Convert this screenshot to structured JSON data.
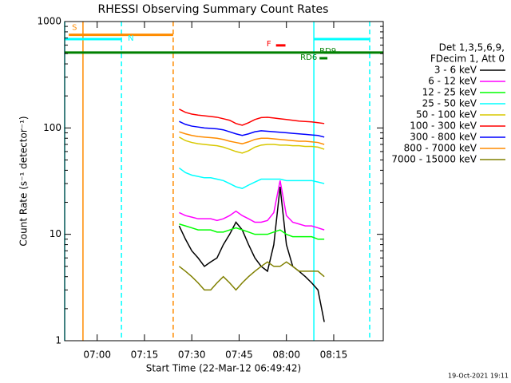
{
  "chart_data": {
    "type": "line",
    "title": "RHESSI Observing Summary Count Rates",
    "xlabel": "Start Time (22-Mar-12 06:49:42)",
    "ylabel": "Count Rate (s⁻¹ detector⁻¹)",
    "legend_header": [
      "Det 1,3,5,6,9,",
      "FDecim 1, Att 0"
    ],
    "footer": "19-Oct-2021 19:11",
    "ylog": true,
    "xlim": [
      409.7,
      510.7
    ],
    "ylim": [
      1,
      1000
    ],
    "yticks": [
      1,
      10,
      100,
      1000
    ],
    "xticks": [
      {
        "value": 420,
        "label": "07:00"
      },
      {
        "value": 435,
        "label": "07:15"
      },
      {
        "value": 450,
        "label": "07:30"
      },
      {
        "value": 465,
        "label": "07:45"
      },
      {
        "value": 480,
        "label": "08:00"
      },
      {
        "value": 495,
        "label": "08:15"
      }
    ],
    "x": [
      446,
      448,
      450,
      452,
      454,
      456,
      458,
      460,
      462,
      464,
      466,
      468,
      470,
      472,
      474,
      476,
      478,
      480,
      482,
      484,
      486,
      488,
      490,
      492
    ],
    "series": [
      {
        "name": "3 - 6 keV",
        "color": "#000000",
        "values": [
          12,
          9,
          7,
          6,
          5,
          5.5,
          6,
          8,
          10,
          13,
          11,
          8,
          6,
          5,
          4.5,
          8,
          28,
          8,
          5,
          4.5,
          4,
          3.5,
          3,
          1.5
        ]
      },
      {
        "name": "6 - 12 keV",
        "color": "#ff00ff",
        "values": [
          16,
          15,
          14.5,
          14,
          14,
          14,
          13.5,
          14,
          15,
          16.5,
          15,
          14,
          13,
          13,
          13.5,
          16,
          32,
          15,
          13,
          12.5,
          12,
          12,
          11.5,
          11
        ]
      },
      {
        "name": "12 - 25 keV",
        "color": "#00ff00",
        "values": [
          12.5,
          12,
          11.5,
          11,
          11,
          11,
          10.5,
          10.5,
          11,
          11.5,
          11,
          10.5,
          10,
          10,
          10,
          10.5,
          11,
          10,
          9.5,
          9.5,
          9.5,
          9.5,
          9,
          9
        ]
      },
      {
        "name": "25 - 50 keV",
        "color": "#00ffff",
        "values": [
          42,
          38,
          36,
          35,
          34,
          34,
          33,
          32,
          30,
          28,
          27,
          29,
          31,
          33,
          33,
          33,
          33,
          32,
          32,
          32,
          32,
          32,
          31,
          30
        ]
      },
      {
        "name": "50 - 100 keV",
        "color": "#d8c800",
        "values": [
          82,
          76,
          73,
          71,
          70,
          69,
          68,
          66,
          63,
          60,
          58,
          61,
          66,
          69,
          70,
          70,
          69,
          69,
          68,
          68,
          67,
          67,
          66,
          63
        ]
      },
      {
        "name": "100 - 300 keV",
        "color": "#ff0000",
        "values": [
          150,
          140,
          135,
          132,
          130,
          128,
          126,
          122,
          118,
          110,
          106,
          112,
          120,
          125,
          126,
          124,
          122,
          120,
          118,
          116,
          115,
          114,
          112,
          110
        ]
      },
      {
        "name": "300 - 800 keV",
        "color": "#0000ff",
        "values": [
          115,
          108,
          104,
          102,
          100,
          99,
          98,
          96,
          92,
          88,
          85,
          88,
          92,
          94,
          93,
          92,
          91,
          90,
          89,
          88,
          87,
          86,
          85,
          82
        ]
      },
      {
        "name": "800 - 7000 keV",
        "color": "#ff8c00",
        "values": [
          92,
          88,
          85,
          83,
          82,
          81,
          80,
          78,
          75,
          73,
          71,
          74,
          78,
          80,
          80,
          79,
          78,
          77,
          76,
          75,
          75,
          74,
          73,
          70
        ]
      },
      {
        "name": "7000 - 15000 keV",
        "color": "#808000",
        "values": [
          5,
          4.5,
          4,
          3.5,
          3,
          3,
          3.5,
          4,
          3.5,
          3,
          3.5,
          4,
          4.5,
          5,
          5.5,
          5,
          5,
          5.5,
          5,
          4.5,
          4.5,
          4.5,
          4.5,
          4
        ]
      }
    ],
    "flags": [
      {
        "label": "S",
        "color": "#ff8c00",
        "start": 411,
        "end": 444.1,
        "level": 750
      },
      {
        "label": "N",
        "color": "#00ffff",
        "start": 409.7,
        "end": 427.7,
        "level": 684
      },
      {
        "color": "#00ffff",
        "start": 488.7,
        "end": 506.4,
        "level": 684
      },
      {
        "label": "F",
        "color": "#ff0000",
        "start": 476.7,
        "end": 479.7,
        "level": 597
      },
      {
        "color": "#008000",
        "start": 409.7,
        "end": 510.7,
        "level": 511
      },
      {
        "label": "RD9",
        "color": "#008000",
        "start": 492,
        "end": 497,
        "level": 511
      },
      {
        "label": "RD6",
        "color": "#008000",
        "start": 490.5,
        "end": 493,
        "level": 452
      }
    ],
    "vlines": [
      {
        "x": 409.7,
        "color": "#00ffff",
        "dashed": false
      },
      {
        "x": 415.5,
        "color": "#ff8c00",
        "dashed": false
      },
      {
        "x": 427.7,
        "color": "#00ffff",
        "dashed": true
      },
      {
        "x": 444.1,
        "color": "#ff8c00",
        "dashed": true
      },
      {
        "x": 488.7,
        "color": "#00ffff",
        "dashed": false
      },
      {
        "x": 506.4,
        "color": "#00ffff",
        "dashed": true
      }
    ]
  }
}
